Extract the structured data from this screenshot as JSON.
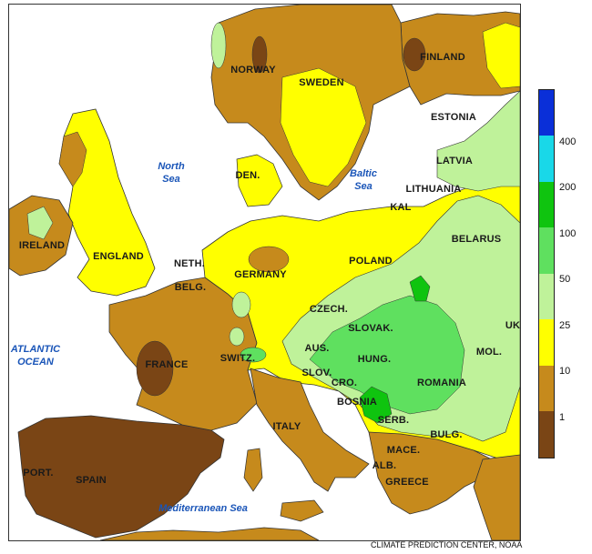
{
  "map": {
    "countries": [
      {
        "label": "NORWAY"
      },
      {
        "label": "SWEDEN"
      },
      {
        "label": "FINLAND"
      },
      {
        "label": "ESTONIA"
      },
      {
        "label": "LATVIA"
      },
      {
        "label": "LITHUANIA"
      },
      {
        "label": "KAL"
      },
      {
        "label": "BELARUS"
      },
      {
        "label": "POLAND"
      },
      {
        "label": "DEN."
      },
      {
        "label": "GERMANY"
      },
      {
        "label": "NETH."
      },
      {
        "label": "BELG."
      },
      {
        "label": "IRELAND"
      },
      {
        "label": "ENGLAND"
      },
      {
        "label": "FRANCE"
      },
      {
        "label": "SWITZ."
      },
      {
        "label": "AUS."
      },
      {
        "label": "CZECH."
      },
      {
        "label": "SLOVAK."
      },
      {
        "label": "HUNG."
      },
      {
        "label": "SLOV."
      },
      {
        "label": "CRO."
      },
      {
        "label": "BOSNIA"
      },
      {
        "label": "SERB."
      },
      {
        "label": "ROMANIA"
      },
      {
        "label": "MOL."
      },
      {
        "label": "UK"
      },
      {
        "label": "BULG."
      },
      {
        "label": "MACE."
      },
      {
        "label": "ALB."
      },
      {
        "label": "GREECE"
      },
      {
        "label": "ITALY"
      },
      {
        "label": "SPAIN"
      },
      {
        "label": "PORT."
      }
    ],
    "seas": [
      {
        "label": "North\nSea"
      },
      {
        "label": "Baltic\nSea"
      },
      {
        "label": "ATLANTIC\nOCEAN"
      },
      {
        "label": "Mediterranean Sea"
      }
    ]
  },
  "legend": {
    "bins": [
      {
        "color": "#0a2fd8",
        "lower": null
      },
      {
        "color": "#19d8e8",
        "lower": "400"
      },
      {
        "color": "#0fc40f",
        "lower": "200"
      },
      {
        "color": "#5fe05f",
        "lower": "100"
      },
      {
        "color": "#bff29a",
        "lower": "50"
      },
      {
        "color": "#ffff00",
        "lower": "25"
      },
      {
        "color": "#c68a1c",
        "lower": "10"
      },
      {
        "color": "#7a4515",
        "lower": "1"
      }
    ]
  },
  "credit": "CLIMATE PREDICTION CENTER, NOAA"
}
